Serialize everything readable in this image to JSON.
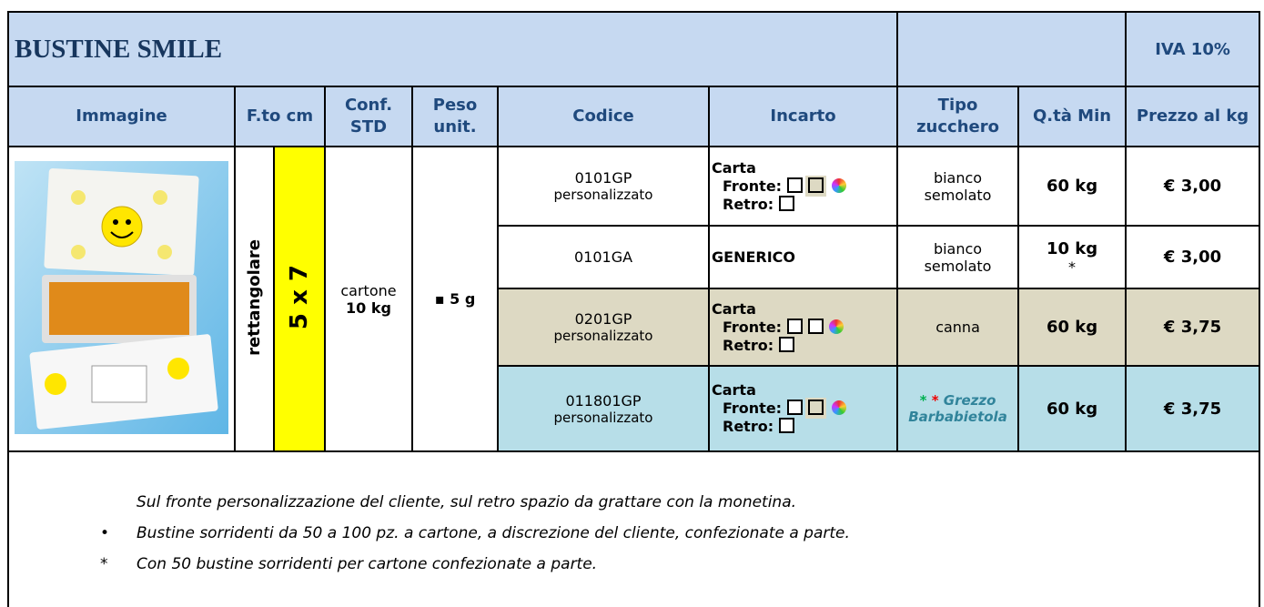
{
  "header": {
    "title": "BUSTINE SMILE",
    "vat": "IVA 10%"
  },
  "table": {
    "columns": [
      "Immagine",
      "F.to cm",
      "Conf. STD",
      "Peso unit.",
      "Codice",
      "Incarto",
      "Tipo zucchero",
      "Q.tà Min",
      "Prezzo al kg"
    ],
    "shape": "rettangolare",
    "size": "5 x 7",
    "conf": "cartone",
    "conf_qty": "10 kg",
    "weight": "▪ 5 g",
    "packaging_labels": {
      "paper": "Carta",
      "front": "Fronte:",
      "back": "Retro:"
    },
    "rows": [
      {
        "code": "0101GP",
        "code_note": "personalizzato",
        "sugar": "bianco semolato",
        "qty": "60 kg",
        "price": "€ 3,00"
      },
      {
        "code": "0101GA",
        "packaging": "GENERICO",
        "sugar": "bianco semolato",
        "qty": "10 kg",
        "qty_note": "*",
        "price": "€ 3,00"
      },
      {
        "code": "0201GP",
        "code_note": "personalizzato",
        "sugar": "canna",
        "qty": "60 kg",
        "price": "€ 3,75"
      },
      {
        "code": "011801GP",
        "code_note": "personalizzato",
        "sugar_marks": [
          "*",
          "*"
        ],
        "sugar": "Grezzo Barbabietola",
        "qty": "60 kg",
        "price": "€ 3,75"
      }
    ]
  },
  "notes": {
    "intro": "Sul fronte personalizzazione del cliente, sul retro spazio da grattare con la monetina.",
    "items": [
      {
        "marker": "•",
        "text": "Bustine sorridenti da 50 a 100 pz. a cartone, a discrezione del cliente, confezionate a parte."
      },
      {
        "marker": "*",
        "text": "Con 50 bustine sorridenti per cartone confezionate a parte."
      }
    ]
  }
}
